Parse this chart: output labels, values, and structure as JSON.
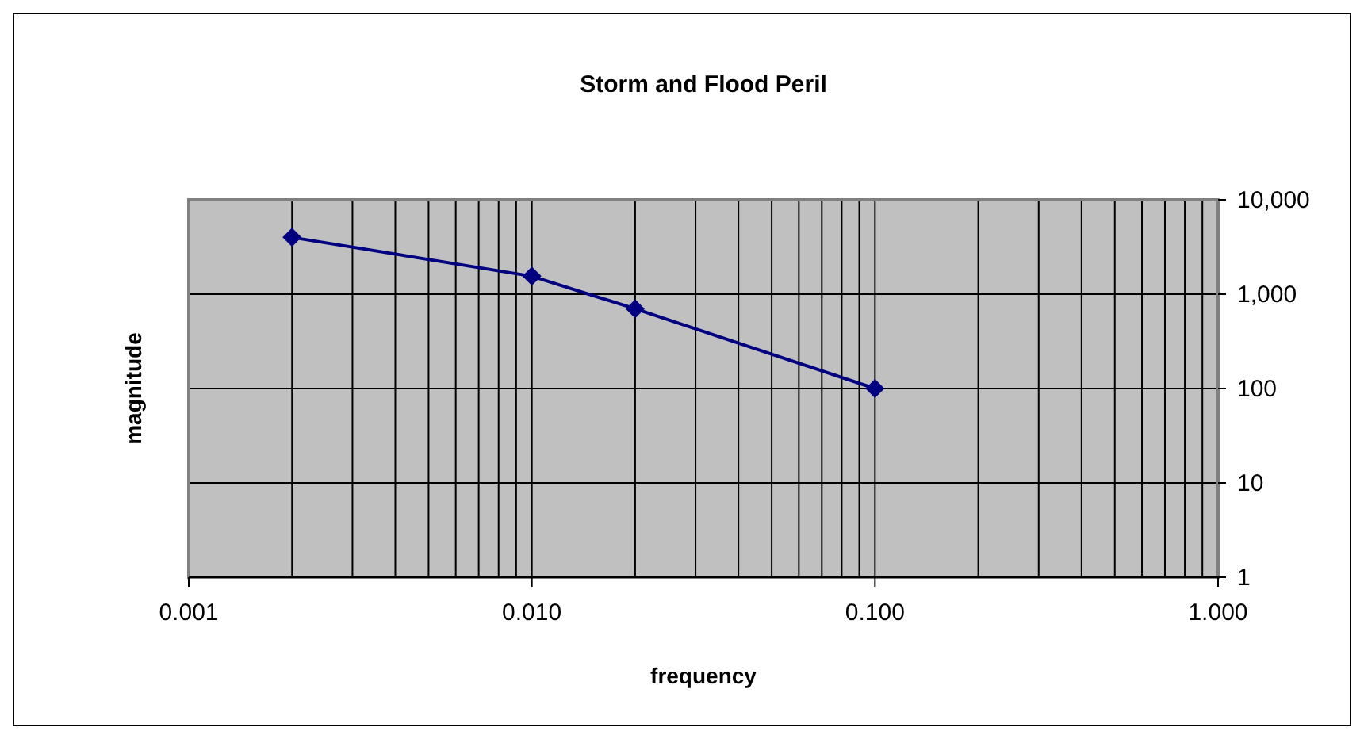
{
  "chart_data": {
    "type": "line",
    "title": "Storm and Flood Peril",
    "xlabel": "frequency",
    "ylabel": "magnitude",
    "x": [
      0.002,
      0.01,
      0.02,
      0.1
    ],
    "series": [
      {
        "color": "#000080",
        "values": [
          4000,
          1550,
          700,
          100
        ]
      }
    ],
    "log": "xy",
    "xlim": [
      0.001,
      1
    ],
    "ylim": [
      1,
      10000
    ],
    "xticks": [
      {
        "value": 0.001,
        "label": "0.001"
      },
      {
        "value": 0.01,
        "label": "0.010"
      },
      {
        "value": 0.1,
        "label": "0.100"
      },
      {
        "value": 1,
        "label": "1.000"
      }
    ],
    "yticks": [
      1,
      10,
      100,
      {
        "value": 1000,
        "label": "1,000"
      },
      {
        "value": 10000,
        "label": "10,000"
      }
    ],
    "grid": true,
    "marker": "diamond",
    "line_style": "solid"
  }
}
